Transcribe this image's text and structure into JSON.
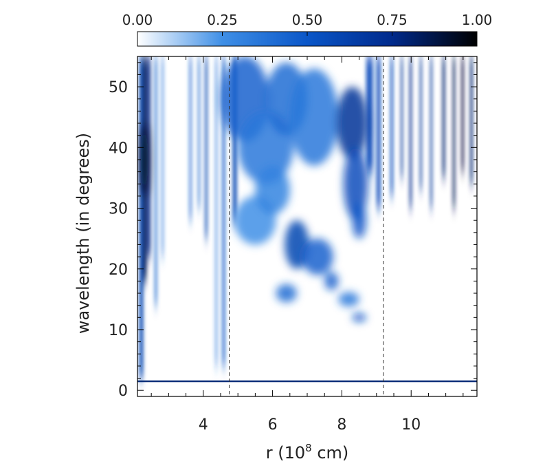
{
  "chart_data": {
    "type": "heatmap",
    "title": "",
    "xlabel": "r (10",
    "xlabel_sup": "8",
    "xlabel_tail": " cm)",
    "ylabel": "wavelength (in degrees)",
    "xlim": [
      2.1,
      11.9
    ],
    "ylim": [
      -1,
      55
    ],
    "x_ticks": [
      4,
      6,
      8,
      10
    ],
    "y_ticks": [
      0,
      10,
      20,
      30,
      40,
      50
    ],
    "x_tick_labels": [
      "4",
      "6",
      "8",
      "10"
    ],
    "y_tick_labels": [
      "0",
      "10",
      "20",
      "30",
      "40",
      "50"
    ],
    "colorbar": {
      "range": [
        0,
        1
      ],
      "ticks": [
        0,
        0.25,
        0.5,
        0.75,
        1
      ],
      "tick_labels": [
        "0.00",
        "0.25",
        "0.50",
        "0.75",
        "1.00"
      ],
      "colors": [
        "#ffffff",
        "#3f8fe6",
        "#0a56c8",
        "#002a8c",
        "#000000"
      ],
      "position": "top"
    },
    "dashed_lines_x": [
      4.75,
      9.2
    ],
    "horizontal_line_y": 1.5,
    "columns": [
      {
        "x": 2.15,
        "w": 0.12,
        "y0": 2,
        "y1": 55,
        "v": 0.6
      },
      {
        "x": 2.25,
        "w": 0.12,
        "y0": 18,
        "y1": 55,
        "v": 0.85
      },
      {
        "x": 2.38,
        "w": 0.1,
        "y0": 22,
        "y1": 55,
        "v": 0.75
      },
      {
        "x": 2.6,
        "w": 0.06,
        "y0": 14,
        "y1": 55,
        "v": 0.5
      },
      {
        "x": 2.8,
        "w": 0.05,
        "y0": 22,
        "y1": 55,
        "v": 0.35
      },
      {
        "x": 3.6,
        "w": 0.06,
        "y0": 28,
        "y1": 55,
        "v": 0.45
      },
      {
        "x": 3.85,
        "w": 0.05,
        "y0": 30,
        "y1": 55,
        "v": 0.5
      },
      {
        "x": 4.05,
        "w": 0.07,
        "y0": 25,
        "y1": 55,
        "v": 0.6
      },
      {
        "x": 4.35,
        "w": 0.05,
        "y0": 4,
        "y1": 55,
        "v": 0.35
      },
      {
        "x": 4.55,
        "w": 0.08,
        "y0": 4,
        "y1": 55,
        "v": 0.5
      },
      {
        "x": 4.85,
        "w": 0.12,
        "y0": 28,
        "y1": 55,
        "v": 0.6
      },
      {
        "x": 8.7,
        "w": 0.2,
        "y0": 36,
        "y1": 55,
        "v": 0.55
      },
      {
        "x": 9.0,
        "w": 0.12,
        "y0": 30,
        "y1": 55,
        "v": 0.55
      },
      {
        "x": 9.4,
        "w": 0.08,
        "y0": 32,
        "y1": 55,
        "v": 0.55
      },
      {
        "x": 9.7,
        "w": 0.06,
        "y0": 35,
        "y1": 55,
        "v": 0.7
      },
      {
        "x": 9.95,
        "w": 0.07,
        "y0": 30,
        "y1": 55,
        "v": 0.75
      },
      {
        "x": 10.25,
        "w": 0.06,
        "y0": 33,
        "y1": 55,
        "v": 0.7
      },
      {
        "x": 10.55,
        "w": 0.06,
        "y0": 30,
        "y1": 55,
        "v": 0.7
      },
      {
        "x": 10.9,
        "w": 0.08,
        "y0": 35,
        "y1": 55,
        "v": 0.8
      },
      {
        "x": 11.2,
        "w": 0.07,
        "y0": 30,
        "y1": 55,
        "v": 0.85
      },
      {
        "x": 11.45,
        "w": 0.07,
        "y0": 36,
        "y1": 55,
        "v": 0.9
      },
      {
        "x": 11.7,
        "w": 0.08,
        "y0": 34,
        "y1": 55,
        "v": 0.8
      }
    ],
    "blobs": [
      {
        "x": 5.2,
        "y": 48,
        "rx": 0.7,
        "ry": 7,
        "v": 0.45
      },
      {
        "x": 5.8,
        "y": 40,
        "rx": 0.8,
        "ry": 6,
        "v": 0.35
      },
      {
        "x": 6.4,
        "y": 48,
        "rx": 0.6,
        "ry": 6,
        "v": 0.4
      },
      {
        "x": 7.2,
        "y": 45,
        "rx": 0.7,
        "ry": 8,
        "v": 0.35
      },
      {
        "x": 8.3,
        "y": 44,
        "rx": 0.45,
        "ry": 6,
        "v": 0.7
      },
      {
        "x": 8.4,
        "y": 34,
        "rx": 0.35,
        "ry": 6,
        "v": 0.55
      },
      {
        "x": 8.5,
        "y": 28,
        "rx": 0.2,
        "ry": 3,
        "v": 0.5
      },
      {
        "x": 6.7,
        "y": 24,
        "rx": 0.35,
        "ry": 4,
        "v": 0.6
      },
      {
        "x": 7.3,
        "y": 22,
        "rx": 0.45,
        "ry": 3,
        "v": 0.45
      },
      {
        "x": 6.4,
        "y": 16,
        "rx": 0.3,
        "ry": 1.5,
        "v": 0.4
      },
      {
        "x": 7.7,
        "y": 18,
        "rx": 0.2,
        "ry": 1.5,
        "v": 0.45
      },
      {
        "x": 8.5,
        "y": 12,
        "rx": 0.2,
        "ry": 0.7,
        "v": 0.5
      },
      {
        "x": 8.2,
        "y": 15,
        "rx": 0.3,
        "ry": 1.2,
        "v": 0.35
      },
      {
        "x": 2.3,
        "y": 38,
        "rx": 0.12,
        "ry": 6,
        "v": 0.95
      },
      {
        "x": 5.5,
        "y": 28,
        "rx": 0.6,
        "ry": 4,
        "v": 0.25
      },
      {
        "x": 6.0,
        "y": 33,
        "rx": 0.5,
        "ry": 4,
        "v": 0.3
      }
    ]
  }
}
